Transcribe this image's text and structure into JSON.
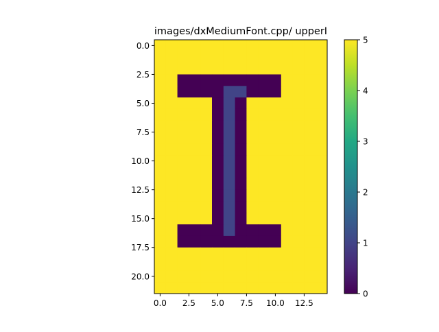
{
  "chart_data": {
    "type": "heatmap",
    "title": "images/dxMediumFont.cpp/ upperI",
    "xlabel": "",
    "ylabel": "",
    "n_cols": 15,
    "n_rows": 22,
    "xlim": [
      -0.5,
      14.5
    ],
    "ylim": [
      21.5,
      -0.5
    ],
    "x_ticks": [
      0.0,
      2.5,
      5.0,
      7.5,
      10.0,
      12.5
    ],
    "x_tick_labels": [
      "0.0",
      "2.5",
      "5.0",
      "7.5",
      "10.0",
      "12.5"
    ],
    "y_ticks": [
      0.0,
      2.5,
      5.0,
      7.5,
      10.0,
      12.5,
      15.0,
      17.5,
      20.0
    ],
    "y_tick_labels": [
      "0.0",
      "2.5",
      "5.0",
      "7.5",
      "10.0",
      "12.5",
      "15.0",
      "17.5",
      "20.0"
    ],
    "colorbar": {
      "vmin": 0,
      "vmax": 5,
      "colormap": "viridis",
      "ticks": [
        0,
        1,
        2,
        3,
        4,
        5
      ],
      "tick_labels": [
        "0",
        "1",
        "2",
        "3",
        "4",
        "5"
      ]
    },
    "grid": false,
    "values": [
      [
        5,
        5,
        5,
        5,
        5,
        5,
        5,
        5,
        5,
        5,
        5,
        5,
        5,
        5,
        5
      ],
      [
        5,
        5,
        5,
        5,
        5,
        5,
        5,
        5,
        5,
        5,
        5,
        5,
        5,
        5,
        5
      ],
      [
        5,
        5,
        5,
        5,
        5,
        5,
        5,
        5,
        5,
        5,
        5,
        5,
        5,
        5,
        5
      ],
      [
        5,
        5,
        0,
        0,
        0,
        0,
        0,
        0,
        0,
        0,
        0,
        5,
        5,
        5,
        5
      ],
      [
        5,
        5,
        0,
        0,
        0,
        0,
        1,
        1,
        0,
        0,
        0,
        5,
        5,
        5,
        5
      ],
      [
        5,
        5,
        5,
        5,
        5,
        0,
        1,
        0,
        5,
        5,
        5,
        5,
        5,
        5,
        5
      ],
      [
        5,
        5,
        5,
        5,
        5,
        0,
        1,
        0,
        5,
        5,
        5,
        5,
        5,
        5,
        5
      ],
      [
        5,
        5,
        5,
        5,
        5,
        0,
        1,
        0,
        5,
        5,
        5,
        5,
        5,
        5,
        5
      ],
      [
        5,
        5,
        5,
        5,
        5,
        0,
        1,
        0,
        5,
        5,
        5,
        5,
        5,
        5,
        5
      ],
      [
        5,
        5,
        5,
        5,
        5,
        0,
        1,
        0,
        5,
        5,
        5,
        5,
        5,
        5,
        5
      ],
      [
        5,
        5,
        5,
        5,
        5,
        0,
        1,
        0,
        5,
        5,
        5,
        5,
        5,
        5,
        5
      ],
      [
        5,
        5,
        5,
        5,
        5,
        0,
        1,
        0,
        5,
        5,
        5,
        5,
        5,
        5,
        5
      ],
      [
        5,
        5,
        5,
        5,
        5,
        0,
        1,
        0,
        5,
        5,
        5,
        5,
        5,
        5,
        5
      ],
      [
        5,
        5,
        5,
        5,
        5,
        0,
        1,
        0,
        5,
        5,
        5,
        5,
        5,
        5,
        5
      ],
      [
        5,
        5,
        5,
        5,
        5,
        0,
        1,
        0,
        5,
        5,
        5,
        5,
        5,
        5,
        5
      ],
      [
        5,
        5,
        5,
        5,
        5,
        0,
        1,
        0,
        5,
        5,
        5,
        5,
        5,
        5,
        5
      ],
      [
        5,
        5,
        0,
        0,
        0,
        0,
        1,
        0,
        0,
        0,
        0,
        5,
        5,
        5,
        5
      ],
      [
        5,
        5,
        0,
        0,
        0,
        0,
        0,
        0,
        0,
        0,
        0,
        5,
        5,
        5,
        5
      ],
      [
        5,
        5,
        5,
        5,
        5,
        5,
        5,
        5,
        5,
        5,
        5,
        5,
        5,
        5,
        5
      ],
      [
        5,
        5,
        5,
        5,
        5,
        5,
        5,
        5,
        5,
        5,
        5,
        5,
        5,
        5,
        5
      ],
      [
        5,
        5,
        5,
        5,
        5,
        5,
        5,
        5,
        5,
        5,
        5,
        5,
        5,
        5,
        5
      ],
      [
        5,
        5,
        5,
        5,
        5,
        5,
        5,
        5,
        5,
        5,
        5,
        5,
        5,
        5,
        5
      ]
    ]
  }
}
